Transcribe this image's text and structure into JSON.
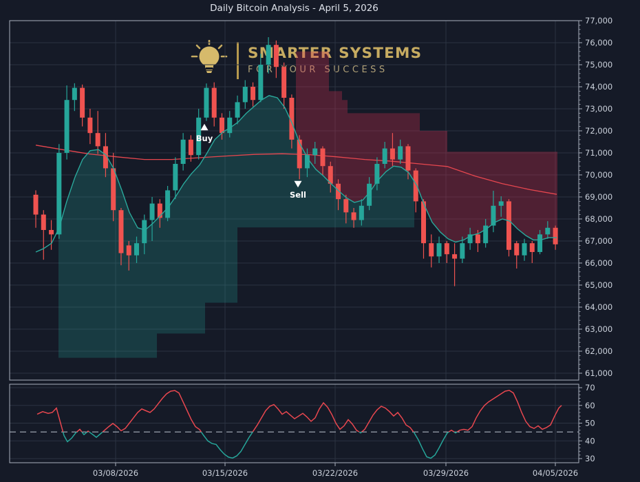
{
  "window": {
    "title": "Daily Bitcoin Analysis - April 5, 2026"
  },
  "logo": {
    "brand": "SMARTER SYSTEMS",
    "tagline": "FOR YOUR SUCCESS"
  },
  "colors": {
    "background": "#151a27",
    "panel_border": "#a9b0bd",
    "grid": "#2c3342",
    "tick_label": "#ccd2dc",
    "title": "#dde1e9",
    "candle_up": "#26a69a",
    "candle_down": "#ef5350",
    "ema_line": "#2aa99c",
    "sma_line": "#e8474f",
    "uptrend_band_fill": "rgba(38,166,154,0.24)",
    "downtrend_band_fill": "rgba(214,48,80,0.30)",
    "osc_above": "#e8474f",
    "osc_below": "#26a69a",
    "threshold_dash": "#9aa1ad",
    "marker": "#ffffff",
    "logo_gold": "#c6ab61"
  },
  "axes": {
    "price_ticks": [
      77000,
      76000,
      75000,
      74000,
      73000,
      72000,
      71000,
      70000,
      69000,
      68000,
      67000,
      66000,
      65000,
      64000,
      63000,
      62000,
      61000
    ],
    "osc_ticks": [
      70,
      60,
      50,
      40,
      30
    ],
    "x_ticks": [
      {
        "label": "03/08/2026",
        "x": 168
      },
      {
        "label": "03/15/2026",
        "x": 327
      },
      {
        "label": "03/22/2026",
        "x": 487
      },
      {
        "label": "03/29/2026",
        "x": 648
      },
      {
        "label": "04/05/2026",
        "x": 807
      }
    ]
  },
  "markers": [
    {
      "label": "Buy",
      "x": 297,
      "value": 72150,
      "dir": "up"
    },
    {
      "label": "Sell",
      "x": 433,
      "value": 69600,
      "dir": "down"
    }
  ],
  "chart_data": {
    "type": "candlestick",
    "title": "Daily Bitcoin Analysis - April 5, 2026",
    "x_tick_dates": [
      "03/08/2026",
      "03/15/2026",
      "03/22/2026",
      "03/29/2026",
      "04/05/2026"
    ],
    "ylim_price": [
      60700,
      77000
    ],
    "ylim_osc": [
      28,
      72
    ],
    "grid": true,
    "legend": "none",
    "oscillator_threshold": 45,
    "candles_ohlc": [
      [
        69100,
        69300,
        67600,
        68200
      ],
      [
        68200,
        68400,
        66150,
        67500
      ],
      [
        67500,
        67950,
        66600,
        67300
      ],
      [
        67300,
        71400,
        67100,
        71000
      ],
      [
        71000,
        74060,
        70700,
        73400
      ],
      [
        73400,
        74160,
        72900,
        73950
      ],
      [
        73950,
        74100,
        72200,
        72600
      ],
      [
        72600,
        73000,
        71400,
        71900
      ],
      [
        71900,
        72900,
        70950,
        71300
      ],
      [
        71300,
        71900,
        69900,
        70300
      ],
      [
        70300,
        71000,
        67900,
        68400
      ],
      [
        68400,
        68500,
        65900,
        66450
      ],
      [
        66800,
        67000,
        65660,
        66350
      ],
      [
        66350,
        67200,
        66000,
        66900
      ],
      [
        66900,
        68200,
        66400,
        67950
      ],
      [
        67950,
        69000,
        67000,
        68700
      ],
      [
        68700,
        68900,
        67600,
        68050
      ],
      [
        68050,
        69500,
        67900,
        69300
      ],
      [
        69300,
        70800,
        68900,
        70500
      ],
      [
        70500,
        71900,
        70200,
        71600
      ],
      [
        71600,
        71800,
        70600,
        70900
      ],
      [
        70900,
        73000,
        70700,
        72600
      ],
      [
        72600,
        74150,
        72450,
        73950
      ],
      [
        73950,
        74200,
        72200,
        72600
      ],
      [
        72600,
        72800,
        71600,
        71900
      ],
      [
        71900,
        72900,
        71700,
        72600
      ],
      [
        72600,
        73600,
        72300,
        73300
      ],
      [
        73300,
        74300,
        73000,
        74000
      ],
      [
        74000,
        74200,
        73100,
        73400
      ],
      [
        73400,
        75500,
        73300,
        75000
      ],
      [
        75000,
        76250,
        74600,
        75900
      ],
      [
        75900,
        76100,
        74400,
        74900
      ],
      [
        74900,
        75100,
        73000,
        73500
      ],
      [
        73500,
        73650,
        71200,
        71600
      ],
      [
        71600,
        71800,
        69800,
        70300
      ],
      [
        70300,
        71200,
        69900,
        70900
      ],
      [
        70900,
        71500,
        70500,
        71200
      ],
      [
        71200,
        71300,
        70000,
        70400
      ],
      [
        70400,
        70600,
        69200,
        69600
      ],
      [
        69600,
        69800,
        68400,
        68900
      ],
      [
        68900,
        69100,
        67800,
        68300
      ],
      [
        68300,
        68500,
        67600,
        67950
      ],
      [
        67950,
        68900,
        67700,
        68600
      ],
      [
        68600,
        69900,
        68400,
        69600
      ],
      [
        69600,
        70800,
        69300,
        70500
      ],
      [
        70500,
        71500,
        70300,
        71200
      ],
      [
        71200,
        71900,
        70400,
        70700
      ],
      [
        70700,
        71600,
        70500,
        71300
      ],
      [
        71300,
        71400,
        69800,
        70200
      ],
      [
        70200,
        70300,
        68300,
        68800
      ],
      [
        68800,
        68900,
        66200,
        66900
      ],
      [
        66900,
        67300,
        65800,
        66300
      ],
      [
        66300,
        67200,
        66000,
        66900
      ],
      [
        66900,
        67000,
        66000,
        66400
      ],
      [
        66400,
        66900,
        64950,
        66200
      ],
      [
        66200,
        67200,
        66000,
        66900
      ],
      [
        66900,
        67600,
        66600,
        67300
      ],
      [
        67300,
        67500,
        66500,
        66900
      ],
      [
        66900,
        68000,
        66700,
        67700
      ],
      [
        67700,
        69280,
        67400,
        68600
      ],
      [
        68600,
        69030,
        68100,
        68800
      ],
      [
        68800,
        68900,
        66300,
        66600
      ],
      [
        66900,
        67000,
        65750,
        66350
      ],
      [
        66350,
        67100,
        66100,
        66900
      ],
      [
        66900,
        67000,
        66000,
        66500
      ],
      [
        66500,
        67500,
        66400,
        67300
      ],
      [
        67300,
        67900,
        67100,
        67600
      ],
      [
        67600,
        67700,
        66600,
        66850
      ]
    ],
    "ema_line": [
      [
        52,
        66500
      ],
      [
        63,
        66650
      ],
      [
        75,
        66900
      ],
      [
        86,
        67600
      ],
      [
        97,
        68800
      ],
      [
        109,
        69900
      ],
      [
        120,
        70700
      ],
      [
        131,
        71100
      ],
      [
        143,
        71150
      ],
      [
        154,
        70900
      ],
      [
        165,
        70300
      ],
      [
        177,
        69300
      ],
      [
        188,
        68300
      ],
      [
        200,
        67600
      ],
      [
        211,
        67500
      ],
      [
        222,
        67800
      ],
      [
        233,
        68150
      ],
      [
        245,
        68550
      ],
      [
        256,
        69050
      ],
      [
        267,
        69600
      ],
      [
        278,
        70050
      ],
      [
        290,
        70450
      ],
      [
        301,
        71000
      ],
      [
        312,
        71600
      ],
      [
        324,
        71950
      ],
      [
        335,
        72150
      ],
      [
        346,
        72400
      ],
      [
        358,
        72800
      ],
      [
        369,
        73100
      ],
      [
        380,
        73400
      ],
      [
        391,
        73600
      ],
      [
        403,
        73500
      ],
      [
        414,
        73050
      ],
      [
        425,
        72300
      ],
      [
        436,
        71400
      ],
      [
        448,
        70700
      ],
      [
        459,
        70250
      ],
      [
        470,
        69950
      ],
      [
        481,
        69600
      ],
      [
        493,
        69250
      ],
      [
        504,
        68950
      ],
      [
        515,
        68750
      ],
      [
        527,
        68850
      ],
      [
        538,
        69250
      ],
      [
        549,
        69750
      ],
      [
        561,
        70150
      ],
      [
        572,
        70400
      ],
      [
        583,
        70350
      ],
      [
        594,
        70100
      ],
      [
        606,
        69500
      ],
      [
        617,
        68600
      ],
      [
        628,
        67850
      ],
      [
        640,
        67400
      ],
      [
        651,
        67100
      ],
      [
        662,
        66950
      ],
      [
        674,
        67050
      ],
      [
        685,
        67250
      ],
      [
        696,
        67350
      ],
      [
        707,
        67550
      ],
      [
        719,
        67850
      ],
      [
        730,
        68000
      ],
      [
        741,
        67900
      ],
      [
        752,
        67550
      ],
      [
        764,
        67250
      ],
      [
        775,
        67050
      ],
      [
        786,
        67050
      ],
      [
        797,
        67150
      ],
      [
        809,
        67150
      ]
    ],
    "sma_line": [
      [
        52,
        71350
      ],
      [
        90,
        71150
      ],
      [
        130,
        70950
      ],
      [
        170,
        70820
      ],
      [
        210,
        70700
      ],
      [
        250,
        70700
      ],
      [
        290,
        70780
      ],
      [
        330,
        70860
      ],
      [
        370,
        70930
      ],
      [
        410,
        70960
      ],
      [
        450,
        70920
      ],
      [
        490,
        70820
      ],
      [
        530,
        70700
      ],
      [
        570,
        70620
      ],
      [
        610,
        70500
      ],
      [
        650,
        70380
      ],
      [
        690,
        69950
      ],
      [
        730,
        69600
      ],
      [
        770,
        69330
      ],
      [
        809,
        69120
      ]
    ],
    "uptrend_band": {
      "x_range": [
        85,
        602
      ],
      "bottom_steps": [
        [
          85,
          61700
        ],
        [
          228,
          62800
        ],
        [
          298,
          64200
        ],
        [
          345,
          67620
        ]
      ]
    },
    "downtrend_band": {
      "x_range": [
        430,
        810
      ],
      "top_steps": [
        [
          430,
          75600
        ],
        [
          478,
          73800
        ],
        [
          497,
          73400
        ],
        [
          505,
          72800
        ],
        [
          610,
          72000
        ],
        [
          650,
          71050
        ]
      ]
    },
    "oscillator": [
      [
        54,
        55
      ],
      [
        62,
        56.5
      ],
      [
        70,
        55.5
      ],
      [
        76,
        56
      ],
      [
        82,
        58.5
      ],
      [
        88,
        50
      ],
      [
        93,
        43
      ],
      [
        98,
        39.5
      ],
      [
        104,
        41.5
      ],
      [
        110,
        44.5
      ],
      [
        116,
        46.5
      ],
      [
        122,
        43.5
      ],
      [
        128,
        45.5
      ],
      [
        134,
        43.8
      ],
      [
        140,
        42
      ],
      [
        146,
        44
      ],
      [
        152,
        46
      ],
      [
        158,
        48
      ],
      [
        164,
        49.8
      ],
      [
        170,
        48
      ],
      [
        176,
        45.7
      ],
      [
        182,
        47
      ],
      [
        188,
        50
      ],
      [
        194,
        53
      ],
      [
        200,
        56
      ],
      [
        206,
        58
      ],
      [
        212,
        57
      ],
      [
        218,
        56
      ],
      [
        224,
        58
      ],
      [
        230,
        61
      ],
      [
        236,
        64
      ],
      [
        242,
        66.5
      ],
      [
        248,
        68
      ],
      [
        254,
        68.4
      ],
      [
        260,
        67
      ],
      [
        266,
        62
      ],
      [
        272,
        57
      ],
      [
        278,
        52
      ],
      [
        284,
        48
      ],
      [
        290,
        46.4
      ],
      [
        296,
        43
      ],
      [
        302,
        40
      ],
      [
        308,
        38.5
      ],
      [
        314,
        38
      ],
      [
        320,
        35
      ],
      [
        326,
        32.5
      ],
      [
        332,
        30.8
      ],
      [
        338,
        30.3
      ],
      [
        344,
        31.5
      ],
      [
        350,
        34
      ],
      [
        356,
        38
      ],
      [
        362,
        42
      ],
      [
        368,
        45.5
      ],
      [
        374,
        49
      ],
      [
        380,
        53
      ],
      [
        386,
        57
      ],
      [
        392,
        59.5
      ],
      [
        398,
        60.5
      ],
      [
        404,
        58
      ],
      [
        410,
        55
      ],
      [
        416,
        56.5
      ],
      [
        422,
        54.5
      ],
      [
        428,
        52.5
      ],
      [
        434,
        54
      ],
      [
        440,
        55.5
      ],
      [
        446,
        53.5
      ],
      [
        452,
        51
      ],
      [
        458,
        53
      ],
      [
        464,
        58
      ],
      [
        470,
        61.5
      ],
      [
        476,
        59
      ],
      [
        482,
        55
      ],
      [
        488,
        50
      ],
      [
        494,
        46.5
      ],
      [
        500,
        48.5
      ],
      [
        506,
        52
      ],
      [
        512,
        49.5
      ],
      [
        518,
        46
      ],
      [
        524,
        44.5
      ],
      [
        530,
        46.5
      ],
      [
        536,
        50.5
      ],
      [
        542,
        54.5
      ],
      [
        548,
        57.5
      ],
      [
        554,
        59.5
      ],
      [
        560,
        58.5
      ],
      [
        566,
        56.5
      ],
      [
        572,
        54
      ],
      [
        578,
        56
      ],
      [
        584,
        53
      ],
      [
        590,
        49
      ],
      [
        596,
        47.5
      ],
      [
        602,
        44.5
      ],
      [
        608,
        40.5
      ],
      [
        614,
        35.5
      ],
      [
        620,
        31
      ],
      [
        626,
        30.2
      ],
      [
        632,
        32
      ],
      [
        638,
        36
      ],
      [
        644,
        40.5
      ],
      [
        650,
        44.5
      ],
      [
        656,
        46
      ],
      [
        662,
        44.5
      ],
      [
        668,
        46
      ],
      [
        674,
        46.5
      ],
      [
        680,
        46
      ],
      [
        686,
        48
      ],
      [
        692,
        53
      ],
      [
        698,
        57
      ],
      [
        704,
        60
      ],
      [
        710,
        62
      ],
      [
        716,
        63.5
      ],
      [
        722,
        65
      ],
      [
        728,
        66.5
      ],
      [
        734,
        68
      ],
      [
        740,
        68.5
      ],
      [
        746,
        67
      ],
      [
        752,
        62
      ],
      [
        758,
        56
      ],
      [
        764,
        51
      ],
      [
        770,
        48
      ],
      [
        776,
        47
      ],
      [
        782,
        48.5
      ],
      [
        788,
        46.5
      ],
      [
        794,
        47.5
      ],
      [
        800,
        49
      ],
      [
        806,
        54
      ],
      [
        812,
        58.5
      ],
      [
        816,
        60
      ]
    ]
  }
}
